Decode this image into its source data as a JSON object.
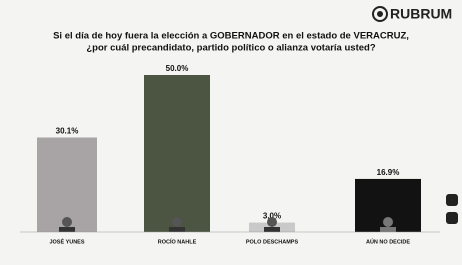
{
  "brand": "RUBRUM",
  "chart_data": {
    "type": "bar",
    "title": [
      "Si el día de hoy fuera la elección a GOBERNADOR en el estado de VERACRUZ,",
      "¿por cuál precandidato, partido político o alianza votaría usted?"
    ],
    "categories": [
      "JOSÉ YUNES",
      "ROCÍO NAHLE",
      "POLO DESCHAMPS",
      "AÚN NO DECIDE"
    ],
    "values": [
      30.1,
      50.0,
      3.0,
      16.9
    ],
    "value_labels": [
      "30.1%",
      "50.0%",
      "3.0%",
      "16.9%"
    ],
    "colors": [
      "#a8a3a5",
      "#4b5542",
      "#c9c9c9",
      "#121212"
    ]
  }
}
